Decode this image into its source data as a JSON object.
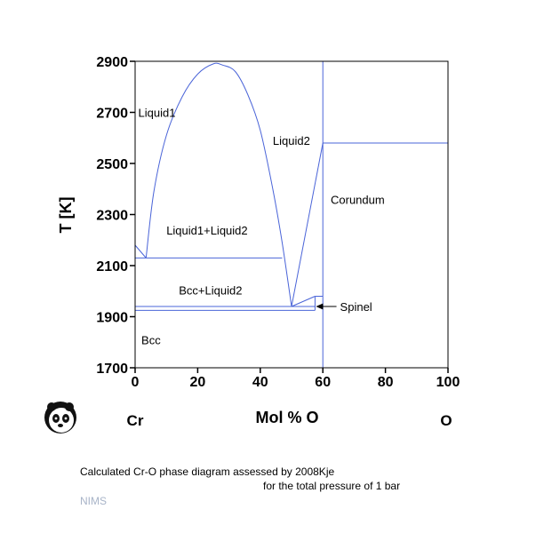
{
  "chart_data": {
    "type": "phase-diagram",
    "xlabel": "Mol % O",
    "ylabel": "T [K]",
    "xlim": [
      0,
      100
    ],
    "ylim": [
      1700,
      2900
    ],
    "xticks": [
      0,
      20,
      40,
      60,
      80,
      100
    ],
    "yticks": [
      1700,
      1900,
      2100,
      2300,
      2500,
      2700,
      2900
    ],
    "end_members": {
      "left": "Cr",
      "right": "O"
    },
    "line_color": "#4a64d8",
    "boundaries": [
      {
        "name": "miscibility-gap-dome",
        "x": [
          3.5,
          6,
          10,
          15,
          20,
          25,
          28,
          32,
          36,
          40,
          44,
          47,
          50
        ],
        "y": [
          2130,
          2390,
          2610,
          2760,
          2850,
          2890,
          2885,
          2860,
          2770,
          2630,
          2400,
          2190,
          1940
        ]
      },
      {
        "name": "liquid1-liquidus",
        "x": [
          0,
          3.5
        ],
        "y": [
          2180,
          2130
        ]
      },
      {
        "name": "monotectic-line",
        "x": [
          0,
          47
        ],
        "y": [
          2130,
          2130
        ]
      },
      {
        "name": "liquid2-liquidus",
        "x": [
          50,
          60
        ],
        "y": [
          1940,
          2580
        ]
      },
      {
        "name": "spinel-liquidus",
        "x": [
          50,
          57.5
        ],
        "y": [
          1940,
          1980
        ]
      },
      {
        "name": "eutectic-line",
        "x": [
          0,
          57.5
        ],
        "y": [
          1940,
          1940
        ]
      },
      {
        "name": "bcc-boundary",
        "x": [
          0,
          57.5
        ],
        "y": [
          1925,
          1925
        ]
      },
      {
        "name": "spinel-top",
        "x": [
          57.5,
          60
        ],
        "y": [
          1980,
          1980
        ]
      },
      {
        "name": "spinel-left",
        "x": [
          57.5,
          57.5
        ],
        "y": [
          1925,
          1980
        ]
      },
      {
        "name": "corundum-right-edge",
        "x": [
          60,
          60
        ],
        "y": [
          1700,
          2580
        ]
      },
      {
        "name": "stoichiometric-line",
        "x": [
          60,
          60
        ],
        "y": [
          2580,
          2900
        ]
      },
      {
        "name": "corundum-melting",
        "x": [
          60,
          100
        ],
        "y": [
          2580,
          2580
        ]
      }
    ],
    "region_labels": [
      {
        "text": "Liquid1",
        "x": 1,
        "y": 2700
      },
      {
        "text": "Liquid2",
        "x": 44,
        "y": 2590
      },
      {
        "text": "Corundum",
        "x": 62.5,
        "y": 2360
      },
      {
        "text": "Liquid1+Liquid2",
        "x": 10,
        "y": 2240
      },
      {
        "text": "Bcc+Liquid2",
        "x": 14,
        "y": 2005
      },
      {
        "text": "Bcc",
        "x": 2,
        "y": 1810
      }
    ],
    "annotations": [
      {
        "text": "Spinel",
        "x": 65.5,
        "y": 1940,
        "arrow_to": [
          57.5,
          1940
        ]
      }
    ]
  },
  "caption": {
    "line1": "Calculated Cr-O phase diagram assessed by 2008Kje",
    "line2": "for the total pressure of 1 bar",
    "source": "NIMS"
  },
  "logo": {
    "icon": "panda-icon"
  }
}
